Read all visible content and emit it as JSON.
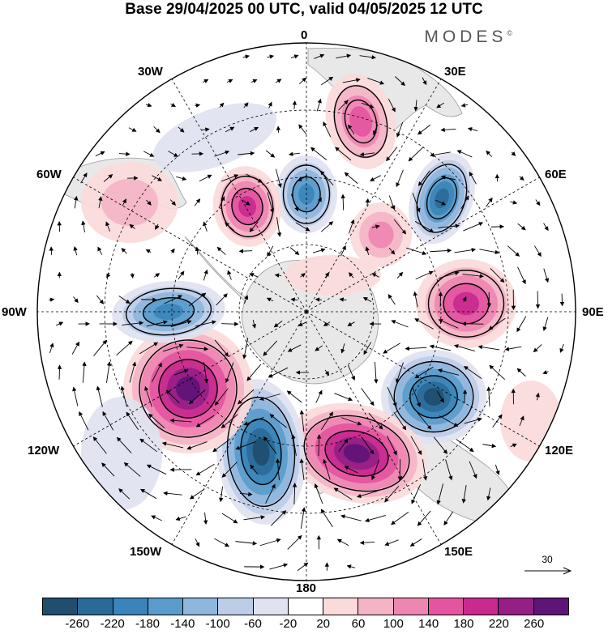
{
  "title": "Base 29/04/2025 00 UTC, valid 04/05/2025 12 UTC",
  "brand": "MODES",
  "brand_mark": "©",
  "longitude_labels": {
    "lon_0": "0",
    "lon_30e": "30E",
    "lon_60e": "60E",
    "lon_90e": "90E",
    "lon_120e": "120E",
    "lon_150e": "150E",
    "lon_180": "180",
    "lon_150w": "150W",
    "lon_120w": "120W",
    "lon_90w": "90W",
    "lon_60w": "60W",
    "lon_30w": "30W"
  },
  "reference_vector": {
    "label": "30"
  },
  "colorbar": {
    "colors": [
      "#1f4e6e",
      "#2a6a98",
      "#3b84ba",
      "#5a9ccc",
      "#8fb6dc",
      "#bccde8",
      "#e0e2f0",
      "#ffffff",
      "#fbdada",
      "#f4b4c6",
      "#ee86b2",
      "#e3559f",
      "#c82a8e",
      "#951f86",
      "#5f1478"
    ],
    "ticks": [
      "-260",
      "-220",
      "-180",
      "-140",
      "-100",
      "-60",
      "-20",
      "20",
      "60",
      "100",
      "140",
      "180",
      "220",
      "260"
    ]
  }
}
